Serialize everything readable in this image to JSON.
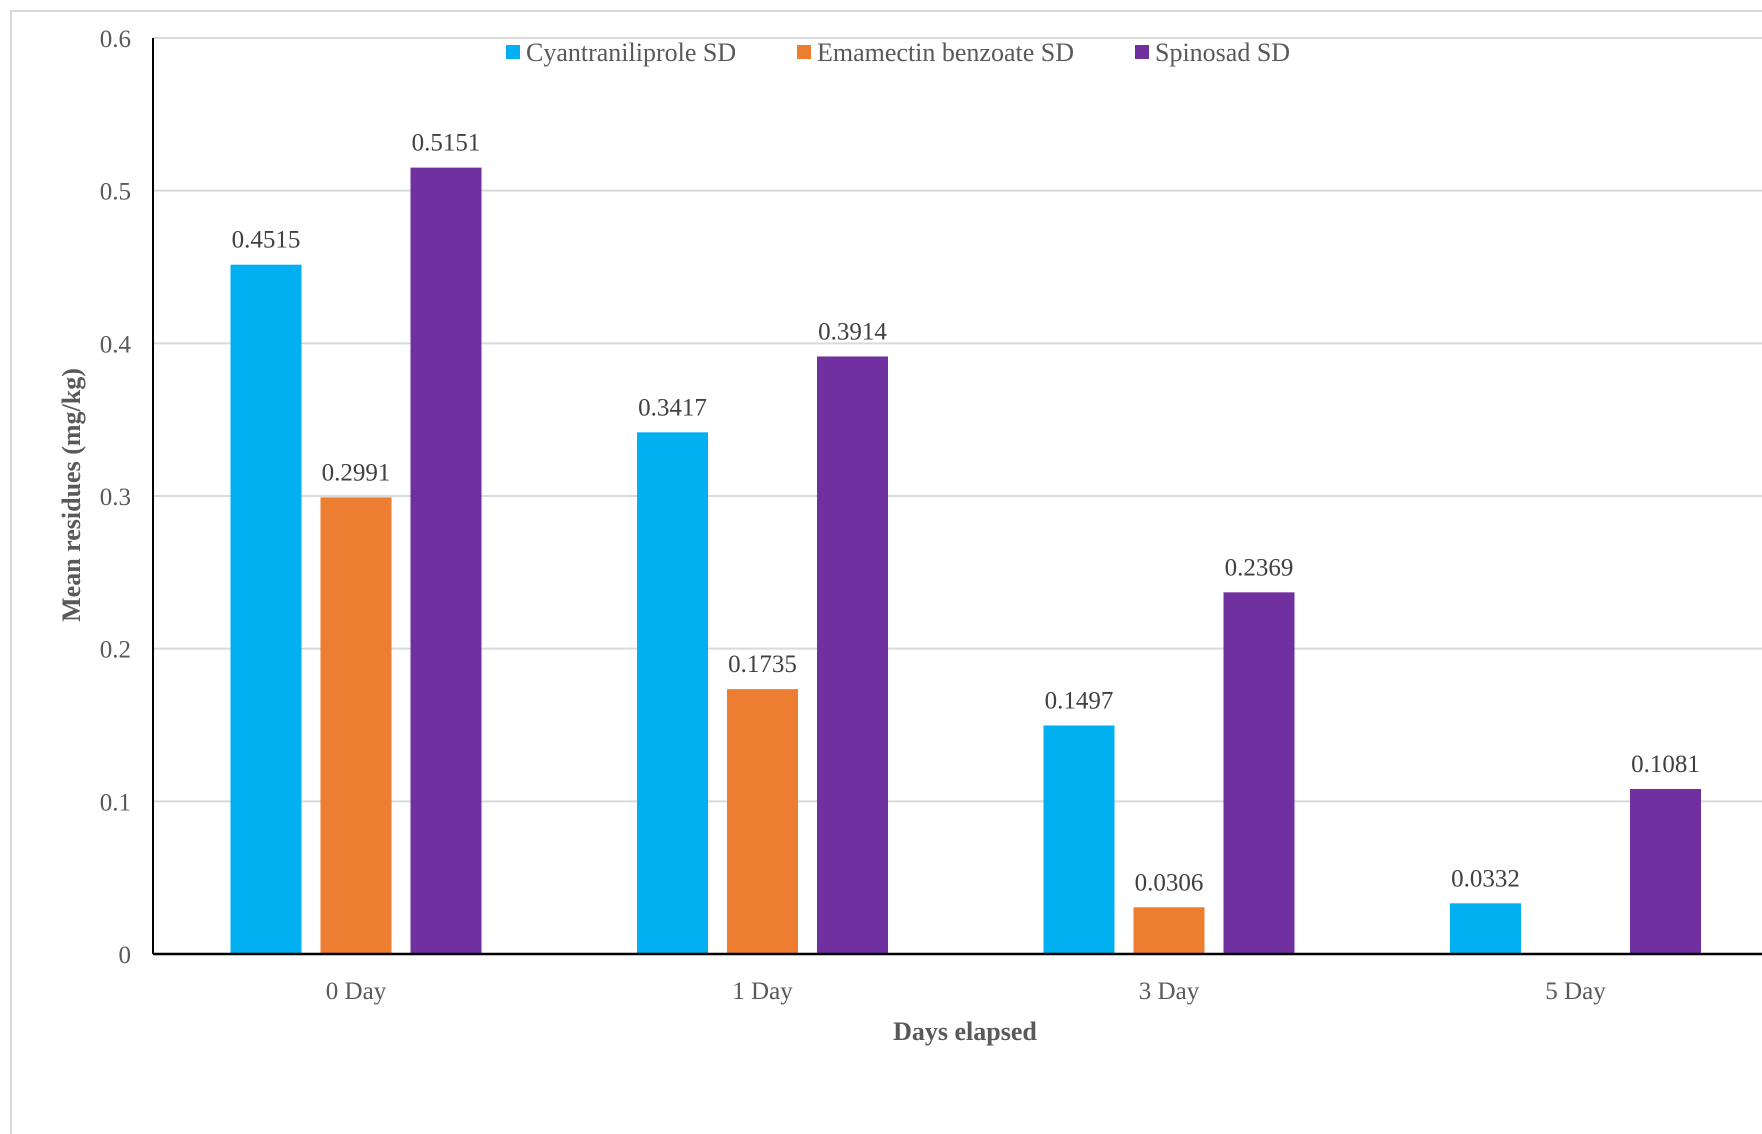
{
  "chart_data": {
    "type": "bar",
    "title": "",
    "xlabel": "Days elapsed",
    "ylabel": "Mean residues (mg/kg)",
    "categories": [
      "0 Day",
      "1 Day",
      "3 Day",
      "5 Day"
    ],
    "ylim": [
      0,
      0.6
    ],
    "yticks": [
      0,
      0.1,
      0.2,
      0.3,
      0.4,
      0.5,
      0.6
    ],
    "ytick_labels": [
      "0",
      "0.1",
      "0.2",
      "0.3",
      "0.4",
      "0.5",
      "0.6"
    ],
    "grid": true,
    "legend_position": "top",
    "series": [
      {
        "name": "Cyantraniliprole SD",
        "color": "#00b0f0",
        "values": [
          0.4515,
          0.3417,
          0.1497,
          0.0332
        ],
        "labels": [
          "0.4515",
          "0.3417",
          "0.1497",
          "0.0332"
        ]
      },
      {
        "name": "Emamectin benzoate SD",
        "color": "#ed7d31",
        "values": [
          0.2991,
          0.1735,
          0.0306,
          null
        ],
        "labels": [
          "0.2991",
          "0.1735",
          "0.0306",
          ""
        ]
      },
      {
        "name": "Spinosad SD",
        "color": "#7030a0",
        "values": [
          0.5151,
          0.3914,
          0.2369,
          0.1081
        ],
        "labels": [
          "0.5151",
          "0.3914",
          "0.2369",
          "0.1081"
        ]
      }
    ]
  }
}
